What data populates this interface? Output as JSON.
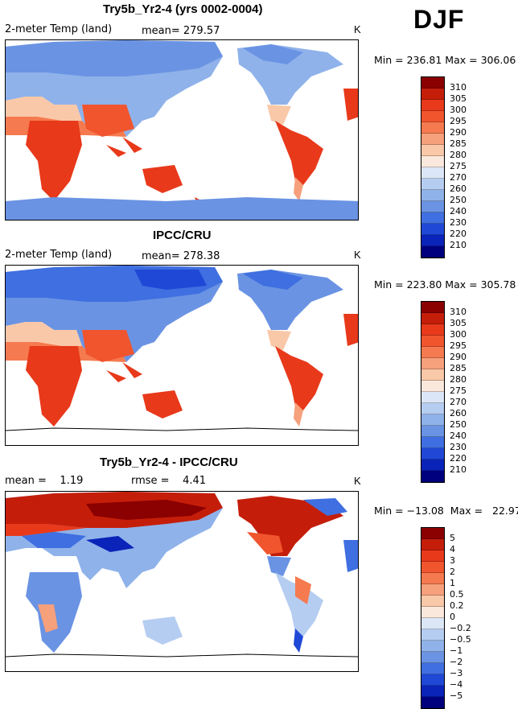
{
  "season": "DJF",
  "panels": [
    {
      "id": "model",
      "title": "Try5b_Yr2-4 (yrs 0002-0004)",
      "left_label": "2-meter Temp (land)",
      "center_label": "mean= 279.57",
      "right_label": "K",
      "minmax": "Min = 236.81  Max = 306.06",
      "colorbar_labels": [
        "310",
        "305",
        "300",
        "295",
        "290",
        "285",
        "280",
        "275",
        "270",
        "260",
        "250",
        "240",
        "230",
        "220",
        "210"
      ],
      "colorbar_colors": [
        "#8b0000",
        "#c41e0a",
        "#e8391b",
        "#f0552e",
        "#f57a4f",
        "#f7a07c",
        "#f9c8a8",
        "#fbe8dc",
        "#dbe6f7",
        "#b5cdf1",
        "#8fb2ea",
        "#6a93e3",
        "#3f6fe0",
        "#1f48d6",
        "#0a23b8",
        "#00007f"
      ]
    },
    {
      "id": "obs",
      "title": "IPCC/CRU",
      "left_label": "2-meter Temp (land)",
      "center_label": "mean= 278.38",
      "right_label": "K",
      "minmax": "Min = 223.80  Max = 305.78",
      "colorbar_labels": [
        "310",
        "305",
        "300",
        "295",
        "290",
        "285",
        "280",
        "275",
        "270",
        "260",
        "250",
        "240",
        "230",
        "220",
        "210"
      ],
      "colorbar_colors": [
        "#8b0000",
        "#c41e0a",
        "#e8391b",
        "#f0552e",
        "#f57a4f",
        "#f7a07c",
        "#f9c8a8",
        "#fbe8dc",
        "#dbe6f7",
        "#b5cdf1",
        "#8fb2ea",
        "#6a93e3",
        "#3f6fe0",
        "#1f48d6",
        "#0a23b8",
        "#00007f"
      ]
    },
    {
      "id": "diff",
      "title": "Try5b_Yr2-4 - IPCC/CRU",
      "left_label": "mean =    1.19",
      "center_label": "rmse =    4.41",
      "right_label": "K",
      "minmax": "Min = −13.08  Max =   22.97",
      "colorbar_labels": [
        "5",
        "4",
        "3",
        "2",
        "1",
        "0.5",
        "0.2",
        "0",
        "−0.2",
        "−0.5",
        "−1",
        "−2",
        "−3",
        "−4",
        "−5"
      ],
      "colorbar_colors": [
        "#8b0000",
        "#c41e0a",
        "#e8391b",
        "#f0552e",
        "#f57a4f",
        "#f7a07c",
        "#f9c8a8",
        "#fbe8dc",
        "#dbe6f7",
        "#b5cdf1",
        "#8fb2ea",
        "#6a93e3",
        "#3f6fe0",
        "#1f48d6",
        "#0a23b8",
        "#00007f"
      ]
    }
  ]
}
